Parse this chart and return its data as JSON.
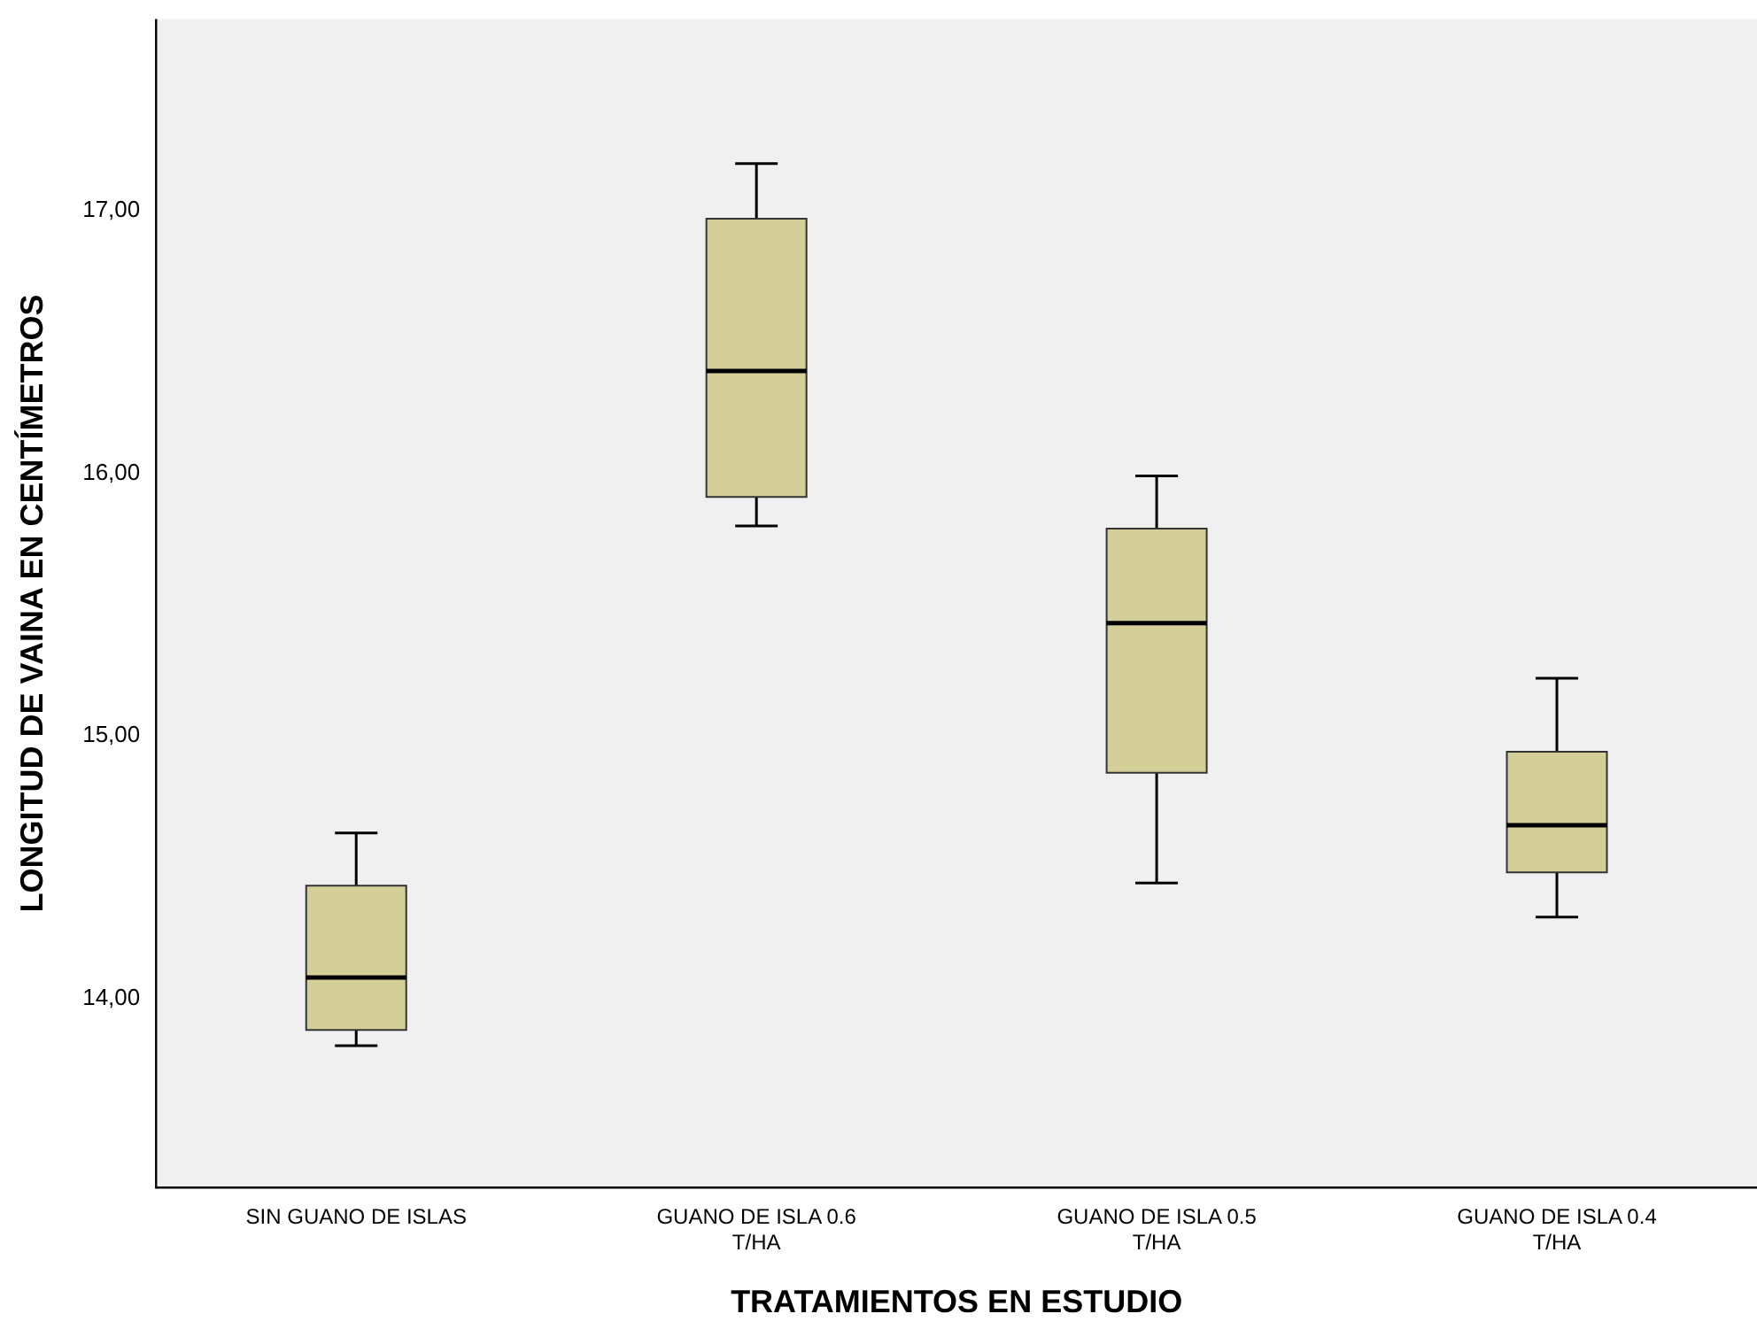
{
  "chart_data": {
    "type": "box",
    "xlabel": "TRATAMIENTOS EN ESTUDIO",
    "ylabel": "LONGITUD DE VAINA EN CENTÍMETROS",
    "categories": [
      "SIN GUANO DE ISLAS",
      "GUANO DE ISLA 0.6 T/HA",
      "GUANO DE ISLA 0.5 T/HA",
      "GUANO DE ISLA 0.4 T/HA"
    ],
    "color": "#d4cf98",
    "boxes": [
      {
        "low": 13.82,
        "q1": 13.88,
        "median": 14.08,
        "q3": 14.43,
        "high": 14.63
      },
      {
        "low": 15.8,
        "q1": 15.91,
        "median": 16.39,
        "q3": 16.97,
        "high": 17.18
      },
      {
        "low": 14.44,
        "q1": 14.86,
        "median": 15.43,
        "q3": 15.79,
        "high": 15.99
      },
      {
        "low": 14.31,
        "q1": 14.48,
        "median": 14.66,
        "q3": 14.94,
        "high": 15.22
      }
    ],
    "ylim": [
      13.28,
      17.73
    ],
    "yticks": [
      {
        "value": 14,
        "label": "14,00"
      },
      {
        "value": 15,
        "label": "15,00"
      },
      {
        "value": 16,
        "label": "16,00"
      },
      {
        "value": 17,
        "label": "17,00"
      }
    ],
    "grid": false
  }
}
